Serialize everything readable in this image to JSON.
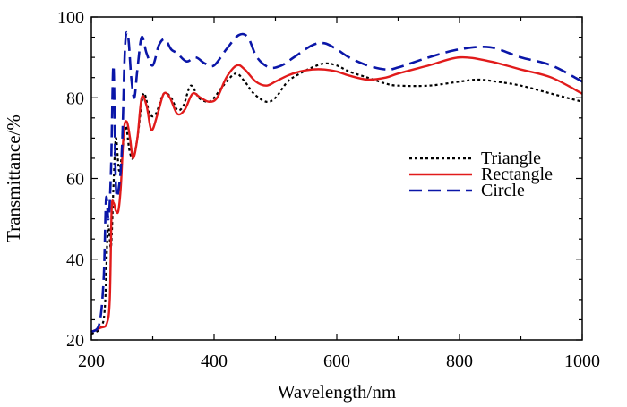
{
  "chart_data": {
    "type": "line",
    "title": "",
    "xlabel": "Wavelength/nm",
    "ylabel": "Transmittance/%",
    "xlim": [
      200,
      1000
    ],
    "ylim": [
      20,
      100
    ],
    "xticks": [
      200,
      400,
      600,
      800,
      1000
    ],
    "yticks": [
      20,
      40,
      60,
      80,
      100
    ],
    "grid": false,
    "legend_position": "center-right",
    "series": [
      {
        "name": "Triangle",
        "color": "#000000",
        "style": "dotted",
        "x": [
          200,
          215,
          222,
          227,
          232,
          236,
          240,
          245,
          250,
          256,
          262,
          268,
          275,
          285,
          295,
          305,
          318,
          330,
          340,
          350,
          362,
          375,
          390,
          400,
          415,
          435,
          450,
          465,
          485,
          500,
          520,
          540,
          560,
          580,
          600,
          620,
          650,
          680,
          700,
          750,
          800,
          830,
          860,
          900,
          950,
          1000
        ],
        "y": [
          21.5,
          23,
          28,
          48,
          43,
          58,
          70,
          62,
          66,
          73,
          67,
          65,
          70,
          81,
          76,
          76,
          81,
          80,
          77,
          78,
          83,
          80,
          79,
          80,
          83,
          86,
          84,
          81,
          79,
          80,
          84,
          86,
          87.5,
          88.5,
          88,
          86.5,
          85,
          83.5,
          83,
          83,
          84,
          84.5,
          84,
          83,
          81,
          79
        ]
      },
      {
        "name": "Rectangle",
        "color": "#e11b1b",
        "style": "solid",
        "x": [
          200,
          215,
          225,
          230,
          233,
          236,
          240,
          244,
          248,
          253,
          258,
          263,
          268,
          275,
          282,
          290,
          298,
          308,
          318,
          328,
          340,
          352,
          365,
          378,
          392,
          405,
          420,
          437,
          450,
          468,
          485,
          500,
          520,
          540,
          560,
          580,
          600,
          620,
          650,
          680,
          700,
          750,
          800,
          850,
          900,
          950,
          1000
        ],
        "y": [
          22,
          23,
          24,
          30,
          52,
          54,
          52,
          52,
          58,
          72,
          74,
          70,
          65,
          70,
          80,
          78,
          72,
          76,
          81,
          80,
          76,
          77,
          81,
          80,
          79,
          80,
          85,
          88,
          87,
          84,
          83,
          84,
          85.5,
          86.5,
          87,
          87,
          86.5,
          85.5,
          84.5,
          85,
          86,
          88,
          90,
          89,
          87,
          85,
          81
        ]
      },
      {
        "name": "Circle",
        "color": "#0a16a8",
        "style": "dashed",
        "x": [
          200,
          213,
          220,
          224,
          228,
          232,
          236,
          240,
          245,
          250,
          255,
          260,
          265,
          270,
          275,
          282,
          290,
          300,
          310,
          320,
          330,
          340,
          355,
          370,
          385,
          400,
          420,
          440,
          455,
          470,
          490,
          510,
          530,
          560,
          580,
          600,
          620,
          650,
          680,
          700,
          750,
          800,
          850,
          900,
          950,
          1000
        ],
        "y": [
          22,
          24,
          35,
          55,
          50,
          62,
          88,
          58,
          58,
          68,
          93,
          95,
          85,
          80,
          87,
          95,
          91,
          88,
          93,
          94.5,
          92,
          91,
          89,
          90,
          88.5,
          88,
          92,
          95.5,
          95,
          90,
          87.5,
          88,
          90,
          93,
          93.5,
          92,
          90,
          88,
          87,
          87.5,
          90,
          92,
          92.5,
          90,
          88,
          84
        ]
      }
    ]
  }
}
